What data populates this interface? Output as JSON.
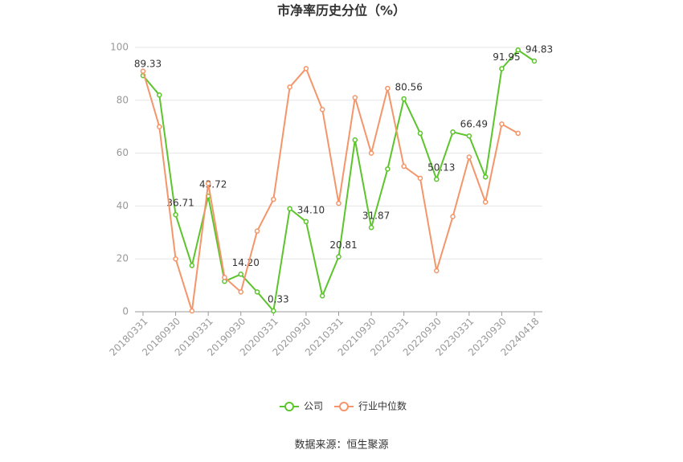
{
  "chart_data": {
    "type": "line",
    "title": "市净率历史分位（%）",
    "categories": [
      "20180331",
      null,
      "20180930",
      null,
      "20190331",
      null,
      "20190930",
      null,
      "20200331",
      null,
      "20200930",
      null,
      "20210331",
      null,
      "20210930",
      null,
      "20220331",
      null,
      "20220930",
      null,
      "20230331",
      null,
      "20230930",
      null,
      "20240418"
    ],
    "series": [
      {
        "name": "公司",
        "color": "#5cc42c",
        "values": [
          89.33,
          82,
          36.71,
          17.5,
          43.72,
          11.5,
          14.2,
          7.5,
          0.33,
          39,
          34.1,
          6,
          20.81,
          65,
          31.87,
          54,
          80.56,
          67.5,
          50.13,
          68,
          66.49,
          51,
          91.95,
          99,
          94.83
        ],
        "value_labels": [
          "89.33",
          null,
          "36.71",
          null,
          "43.72",
          null,
          "14.20",
          null,
          "0.33",
          null,
          "34.10",
          null,
          "20.81",
          null,
          "31.87",
          null,
          "80.56",
          null,
          "50.13",
          null,
          "66.49",
          null,
          "91.95",
          null,
          "94.83"
        ]
      },
      {
        "name": "行业中位数",
        "color": "#f4956a",
        "values": [
          91,
          70,
          20,
          0.3,
          48.5,
          13,
          7.5,
          30.5,
          42.5,
          85,
          92,
          76.5,
          41,
          81,
          60,
          84.5,
          55,
          50.5,
          15.5,
          36,
          58.5,
          41.5,
          71,
          67.5,
          null
        ]
      }
    ],
    "ylim": [
      0,
      100
    ],
    "yticks": [
      0,
      20,
      40,
      60,
      80,
      100
    ],
    "grid": true,
    "legend": "bottom",
    "source": "数据来源：恒生聚源"
  }
}
